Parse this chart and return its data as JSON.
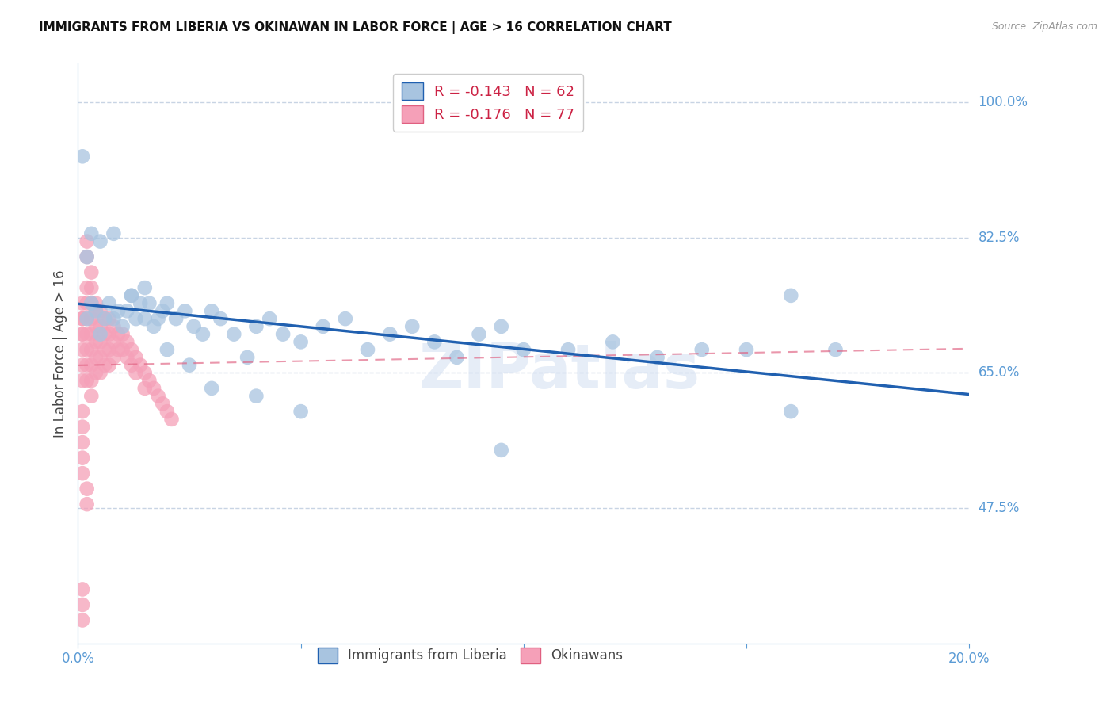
{
  "title": "IMMIGRANTS FROM LIBERIA VS OKINAWAN IN LABOR FORCE | AGE > 16 CORRELATION CHART",
  "source": "Source: ZipAtlas.com",
  "ylabel": "In Labor Force | Age > 16",
  "watermark": "ZIPatlas",
  "legend_liberia": {
    "R": -0.143,
    "N": 62,
    "color": "#a8c4e0",
    "line_color": "#2060b0"
  },
  "legend_okinawan": {
    "R": -0.176,
    "N": 77,
    "color": "#f5a0b8",
    "line_color": "#e06080"
  },
  "xlim": [
    0.0,
    0.2
  ],
  "ylim": [
    0.3,
    1.05
  ],
  "yticks": [
    0.475,
    0.65,
    0.825,
    1.0
  ],
  "ytick_labels": [
    "47.5%",
    "65.0%",
    "82.5%",
    "100.0%"
  ],
  "xticks": [
    0.0,
    0.05,
    0.1,
    0.15,
    0.2
  ],
  "xtick_labels": [
    "0.0%",
    "",
    "",
    "",
    "20.0%"
  ],
  "liberia_x": [
    0.001,
    0.002,
    0.002,
    0.003,
    0.004,
    0.005,
    0.006,
    0.007,
    0.008,
    0.009,
    0.01,
    0.011,
    0.012,
    0.013,
    0.014,
    0.015,
    0.016,
    0.017,
    0.018,
    0.019,
    0.02,
    0.022,
    0.024,
    0.026,
    0.028,
    0.03,
    0.032,
    0.035,
    0.038,
    0.04,
    0.043,
    0.046,
    0.05,
    0.055,
    0.06,
    0.065,
    0.07,
    0.075,
    0.08,
    0.085,
    0.09,
    0.095,
    0.1,
    0.11,
    0.12,
    0.13,
    0.14,
    0.15,
    0.16,
    0.17,
    0.003,
    0.005,
    0.008,
    0.012,
    0.015,
    0.02,
    0.025,
    0.03,
    0.04,
    0.05,
    0.16,
    0.095
  ],
  "liberia_y": [
    0.93,
    0.8,
    0.72,
    0.74,
    0.73,
    0.7,
    0.72,
    0.74,
    0.72,
    0.73,
    0.71,
    0.73,
    0.75,
    0.72,
    0.74,
    0.72,
    0.74,
    0.71,
    0.72,
    0.73,
    0.74,
    0.72,
    0.73,
    0.71,
    0.7,
    0.73,
    0.72,
    0.7,
    0.67,
    0.71,
    0.72,
    0.7,
    0.69,
    0.71,
    0.72,
    0.68,
    0.7,
    0.71,
    0.69,
    0.67,
    0.7,
    0.71,
    0.68,
    0.68,
    0.69,
    0.67,
    0.68,
    0.68,
    0.6,
    0.68,
    0.83,
    0.82,
    0.83,
    0.75,
    0.76,
    0.68,
    0.66,
    0.63,
    0.62,
    0.6,
    0.75,
    0.55
  ],
  "okinawan_x": [
    0.001,
    0.001,
    0.001,
    0.001,
    0.001,
    0.001,
    0.001,
    0.001,
    0.002,
    0.002,
    0.002,
    0.002,
    0.002,
    0.002,
    0.002,
    0.003,
    0.003,
    0.003,
    0.003,
    0.003,
    0.003,
    0.003,
    0.004,
    0.004,
    0.004,
    0.004,
    0.004,
    0.005,
    0.005,
    0.005,
    0.005,
    0.005,
    0.006,
    0.006,
    0.006,
    0.006,
    0.007,
    0.007,
    0.007,
    0.007,
    0.008,
    0.008,
    0.008,
    0.009,
    0.009,
    0.01,
    0.01,
    0.011,
    0.011,
    0.012,
    0.012,
    0.013,
    0.013,
    0.014,
    0.015,
    0.015,
    0.016,
    0.017,
    0.018,
    0.019,
    0.02,
    0.021,
    0.002,
    0.002,
    0.003,
    0.003,
    0.004,
    0.001,
    0.001,
    0.001,
    0.001,
    0.001,
    0.002,
    0.002,
    0.001,
    0.001,
    0.001
  ],
  "okinawan_y": [
    0.74,
    0.72,
    0.7,
    0.68,
    0.66,
    0.64,
    0.72,
    0.7,
    0.76,
    0.74,
    0.72,
    0.7,
    0.68,
    0.66,
    0.64,
    0.74,
    0.72,
    0.7,
    0.68,
    0.66,
    0.64,
    0.62,
    0.73,
    0.71,
    0.69,
    0.67,
    0.65,
    0.73,
    0.71,
    0.69,
    0.67,
    0.65,
    0.72,
    0.7,
    0.68,
    0.66,
    0.72,
    0.7,
    0.68,
    0.66,
    0.71,
    0.69,
    0.67,
    0.7,
    0.68,
    0.7,
    0.68,
    0.69,
    0.67,
    0.68,
    0.66,
    0.67,
    0.65,
    0.66,
    0.65,
    0.63,
    0.64,
    0.63,
    0.62,
    0.61,
    0.6,
    0.59,
    0.82,
    0.8,
    0.78,
    0.76,
    0.74,
    0.6,
    0.58,
    0.56,
    0.54,
    0.52,
    0.5,
    0.48,
    0.37,
    0.35,
    0.33
  ],
  "title_fontsize": 11,
  "axis_color": "#5b9bd5",
  "background_color": "#ffffff",
  "grid_color": "#c8d4e4"
}
